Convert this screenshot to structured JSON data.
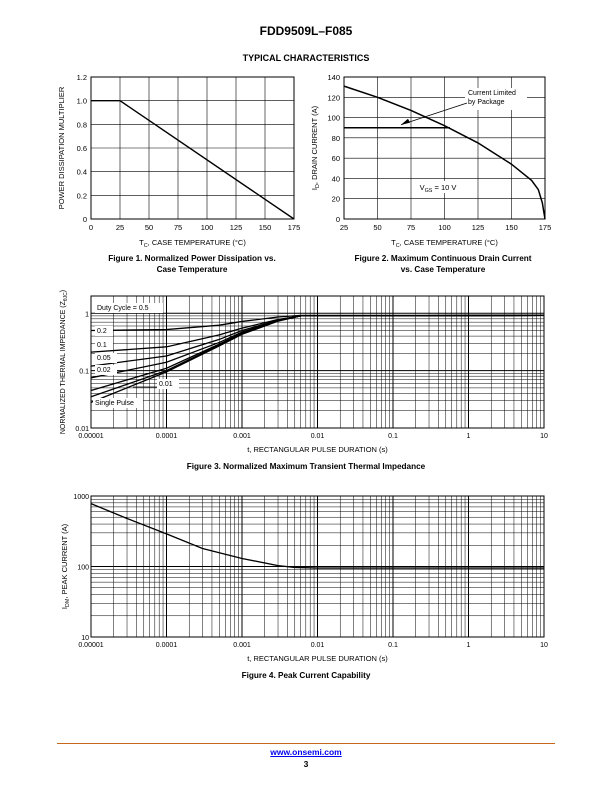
{
  "header": {
    "part_number": "FDD9509L–F085",
    "section_title": "TYPICAL CHARACTERISTICS"
  },
  "captions": {
    "fig1": [
      "Figure 1. Normalized Power Dissipation vs.",
      "Case Temperature"
    ],
    "fig2": [
      "Figure 2. Maximum Continuous Drain Current",
      "vs. Case Temperature"
    ],
    "fig3": "Figure 3. Normalized Maximum Transient Thermal Impedance",
    "fig4": "Figure 4. Peak Current Capability"
  },
  "footer": {
    "link": "www.onsemi.com",
    "page": "3"
  },
  "chart_data": [
    {
      "id": "fig1",
      "type": "line",
      "xlabel_main": "T",
      "xlabel_sub": "C",
      "xlabel_rest": ", CASE TEMPERATURE (°C)",
      "ylabel": "POWER DISSIPATION MULTIPLIER",
      "xlim": [
        0,
        175
      ],
      "ylim": [
        0,
        1.2
      ],
      "xticks": [
        0,
        25,
        50,
        75,
        100,
        125,
        150,
        175
      ],
      "xtick_labels": [
        "0",
        "25",
        "50",
        "75",
        "100",
        "125",
        "150",
        "175"
      ],
      "yticks": [
        0,
        0.2,
        0.4,
        0.6,
        0.8,
        1.0,
        1.2
      ],
      "ytick_labels": [
        "0",
        "0.2",
        "0.4",
        "0.6",
        "0.8",
        "1.0",
        "1.2"
      ],
      "grid": true,
      "series": [
        {
          "x": [
            0,
            25,
            175
          ],
          "y": [
            1.0,
            1.0,
            0
          ]
        }
      ]
    },
    {
      "id": "fig2",
      "type": "line",
      "xlabel_main": "T",
      "xlabel_sub": "C",
      "xlabel_rest": ", CASE TEMPERATURE (°C)",
      "ylabel_main": "I",
      "ylabel_sub": "D",
      "ylabel_rest": ", DRAIN CURRENT (A)",
      "xlim": [
        25,
        175
      ],
      "ylim": [
        0,
        140
      ],
      "xticks": [
        25,
        50,
        75,
        100,
        125,
        150,
        175
      ],
      "xtick_labels": [
        "25",
        "50",
        "75",
        "100",
        "125",
        "150",
        "175"
      ],
      "yticks": [
        0,
        20,
        40,
        60,
        80,
        100,
        120,
        140
      ],
      "ytick_labels": [
        "0",
        "20",
        "40",
        "60",
        "80",
        "100",
        "120",
        "140"
      ],
      "grid": true,
      "annotations": {
        "current_limited": [
          "Current Limited",
          "by Package"
        ],
        "vgs_main": "V",
        "vgs_sub": "GS",
        "vgs_rest": " = 10 V"
      },
      "series": [
        {
          "x": [
            25,
            50,
            75,
            100,
            125,
            150,
            165,
            170,
            173,
            175
          ],
          "y": [
            131,
            120,
            107,
            92,
            75,
            54,
            38,
            29,
            16,
            0
          ]
        },
        {
          "x": [
            25,
            104
          ],
          "y": [
            90,
            90
          ]
        }
      ]
    },
    {
      "id": "fig3",
      "type": "line",
      "xlabel": "t, RECTANGULAR PULSE DURATION (s)",
      "ylabel_main": "NORMALIZED THERMAL IMPEDANCE (Z",
      "ylabel_sub": "θJC",
      "ylabel_rest": ")",
      "xscale": "log",
      "yscale": "log",
      "xlim": [
        1e-05,
        10
      ],
      "ylim": [
        0.01,
        2
      ],
      "xticks": [
        1e-05,
        0.0001,
        0.001,
        0.01,
        0.1,
        1,
        10
      ],
      "xtick_labels": [
        "0.00001",
        "0.0001",
        "0.001",
        "0.01",
        "0.1",
        "1",
        "10"
      ],
      "yticks": [
        0.01,
        0.1,
        1
      ],
      "ytick_labels": [
        "0.01",
        "0.1",
        "1"
      ],
      "grid": true,
      "series": [
        {
          "name": "Duty Cycle = 0.5",
          "x": [
            1e-05,
            0.0001,
            0.0005,
            0.001,
            0.003,
            0.006,
            10
          ],
          "y": [
            0.5,
            0.52,
            0.62,
            0.72,
            0.86,
            0.92,
            0.92
          ]
        },
        {
          "name": "0.2",
          "x": [
            1e-05,
            0.0001,
            0.0005,
            0.001,
            0.003,
            0.006,
            10
          ],
          "y": [
            0.21,
            0.26,
            0.42,
            0.55,
            0.78,
            0.9,
            0.92
          ]
        },
        {
          "name": "0.1",
          "x": [
            1e-05,
            0.0001,
            0.0005,
            0.001,
            0.003,
            0.006,
            10
          ],
          "y": [
            0.12,
            0.18,
            0.35,
            0.5,
            0.76,
            0.9,
            0.92
          ]
        },
        {
          "name": "0.05",
          "x": [
            1e-05,
            0.0001,
            0.0005,
            0.001,
            0.003,
            0.006,
            10
          ],
          "y": [
            0.075,
            0.14,
            0.31,
            0.47,
            0.75,
            0.9,
            0.92
          ]
        },
        {
          "name": "0.02",
          "x": [
            1e-05,
            0.0001,
            0.0005,
            0.001,
            0.003,
            0.006,
            10
          ],
          "y": [
            0.045,
            0.11,
            0.29,
            0.45,
            0.74,
            0.9,
            0.92
          ]
        },
        {
          "name": "0.01",
          "x": [
            1e-05,
            0.0001,
            0.0005,
            0.001,
            0.003,
            0.006,
            10
          ],
          "y": [
            0.035,
            0.1,
            0.28,
            0.44,
            0.74,
            0.9,
            0.92
          ]
        },
        {
          "name": "Single Pulse",
          "x": [
            1e-05,
            0.0001,
            0.0005,
            0.001,
            0.003,
            0.006,
            10
          ],
          "y": [
            0.028,
            0.095,
            0.27,
            0.43,
            0.73,
            0.9,
            0.92
          ]
        }
      ]
    },
    {
      "id": "fig4",
      "type": "line",
      "xlabel": "t, RECTANGULAR PULSE DURATION (s)",
      "ylabel_main": "I",
      "ylabel_sub": "DM",
      "ylabel_rest": ", PEAK CURRENT (A)",
      "xscale": "log",
      "yscale": "log",
      "xlim": [
        1e-05,
        10
      ],
      "ylim": [
        10,
        1000
      ],
      "xticks": [
        1e-05,
        0.0001,
        0.001,
        0.01,
        0.1,
        1,
        10
      ],
      "xtick_labels": [
        "0.00001",
        "0.0001",
        "0.001",
        "0.01",
        "0.1",
        "1",
        "10"
      ],
      "yticks": [
        10,
        100,
        1000
      ],
      "ytick_labels": [
        "10",
        "100",
        "1000"
      ],
      "grid": true,
      "series": [
        {
          "x": [
            1e-05,
            3e-05,
            0.0001,
            0.0003,
            0.001,
            0.003,
            0.005,
            0.01,
            10
          ],
          "y": [
            780,
            480,
            290,
            180,
            130,
            103,
            97,
            95,
            95
          ]
        }
      ]
    }
  ]
}
